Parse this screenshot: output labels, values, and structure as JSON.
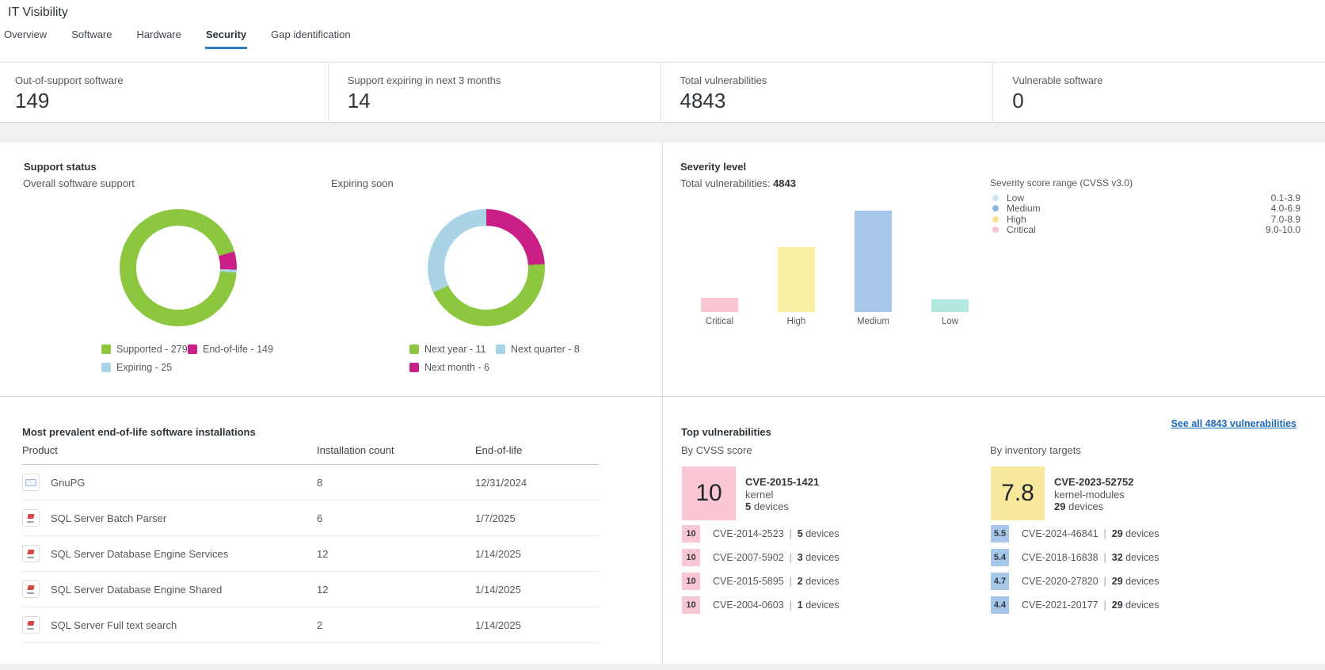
{
  "page": {
    "title": "IT Visibility"
  },
  "tabs": [
    {
      "label": "Overview",
      "active": false
    },
    {
      "label": "Software",
      "active": false
    },
    {
      "label": "Hardware",
      "active": false
    },
    {
      "label": "Security",
      "active": true
    },
    {
      "label": "Gap identification",
      "active": false
    }
  ],
  "kpis": [
    {
      "label": "Out-of-support software",
      "value": "149"
    },
    {
      "label": "Support expiring in next 3 months",
      "value": "14"
    },
    {
      "label": "Total vulnerabilities",
      "value": "4843"
    },
    {
      "label": "Vulnerable software",
      "value": "0"
    }
  ],
  "colors": {
    "green": "#8dc63f",
    "magenta": "#ca1f87",
    "lightblue": "#a8d4e6",
    "bar_critical": "#f9c6d3",
    "bar_high": "#fbf0a3",
    "bar_medium": "#a6c7e9",
    "bar_low": "#b2e9e0",
    "featured_yellow": "#f7e89d",
    "link_blue": "#1d6ab8",
    "tab_accent": "#2e7cc0"
  },
  "support_status": {
    "heading": "Support status",
    "donuts": [
      {
        "title": "Overall software support",
        "start_angle": 95,
        "segments": [
          {
            "label": "Supported",
            "value": 2795,
            "color": "#8dc63f"
          },
          {
            "label": "End-of-life",
            "value": 149,
            "color": "#ca1f87"
          },
          {
            "label": "Expiring",
            "value": 25,
            "color": "#a8d4e6"
          }
        ],
        "legend": [
          {
            "label": "Supported",
            "value": 2795,
            "color": "#8dc63f"
          },
          {
            "label": "End-of-life",
            "value": 149,
            "color": "#ca1f87"
          },
          {
            "label": "Expiring",
            "value": 25,
            "color": "#a8d4e6"
          }
        ]
      },
      {
        "title": "Expiring soon",
        "start_angle": 0,
        "segments": [
          {
            "label": "Next month",
            "value": 6,
            "color": "#ca1f87"
          },
          {
            "label": "Next year",
            "value": 11,
            "color": "#8dc63f"
          },
          {
            "label": "Next quarter",
            "value": 8,
            "color": "#a8d4e6"
          }
        ],
        "legend": [
          {
            "label": "Next year",
            "value": 11,
            "color": "#8dc63f"
          },
          {
            "label": "Next quarter",
            "value": 8,
            "color": "#a8d4e6"
          },
          {
            "label": "Next month",
            "value": 6,
            "color": "#ca1f87"
          }
        ]
      }
    ]
  },
  "severity": {
    "heading": "Severity level",
    "total_label": "Total vulnerabilities:",
    "total_value": "4843",
    "bars": {
      "categories": [
        "Critical",
        "High",
        "Medium",
        "Low"
      ],
      "values": [
        357,
        1628,
        2541,
        317
      ],
      "colors": [
        "#f9c6d3",
        "#fbf0a3",
        "#a6c7e9",
        "#b2e9e0"
      ]
    },
    "legend": {
      "title": "Severity score range (CVSS v3.0)",
      "items": [
        {
          "label": "Low",
          "range": "0.1-3.9",
          "color": "#c9e7f2"
        },
        {
          "label": "Medium",
          "range": "4.0-6.9",
          "color": "#8fb6de"
        },
        {
          "label": "High",
          "range": "7.0-8.9",
          "color": "#f6e58e"
        },
        {
          "label": "Critical",
          "range": "9.0-10.0",
          "color": "#f8c3d0"
        }
      ]
    }
  },
  "eol_table": {
    "heading": "Most prevalent end-of-life software installations",
    "columns": [
      "Product",
      "Installation count",
      "End-of-life"
    ],
    "rows": [
      {
        "product": "GnuPG",
        "icon": "gnupg",
        "count": "8",
        "date": "12/31/2024"
      },
      {
        "product": "SQL Server Batch Parser",
        "icon": "sqlserver",
        "count": "6",
        "date": "1/7/2025"
      },
      {
        "product": "SQL Server Database Engine Services",
        "icon": "sqlserver",
        "count": "12",
        "date": "1/14/2025"
      },
      {
        "product": "SQL Server Database Engine Shared",
        "icon": "sqlserver",
        "count": "12",
        "date": "1/14/2025"
      },
      {
        "product": "SQL Server Full text search",
        "icon": "sqlserver",
        "count": "2",
        "date": "1/14/2025"
      }
    ]
  },
  "top_vulnerabilities": {
    "heading": "Top vulnerabilities",
    "see_all_link": "See all 4843 vulnerabilities",
    "columns": [
      {
        "title": "By CVSS score",
        "featured": {
          "score": "10",
          "score_bg": "#f9c6d3",
          "cve": "CVE-2015-1421",
          "component": "kernel",
          "device_count": "5",
          "device_label": "devices"
        },
        "rows": [
          {
            "score": "10",
            "score_bg": "#f9c6d3",
            "cve": "CVE-2014-2523",
            "device_count": "5",
            "device_label": "devices"
          },
          {
            "score": "10",
            "score_bg": "#f9c6d3",
            "cve": "CVE-2007-5902",
            "device_count": "3",
            "device_label": "devices"
          },
          {
            "score": "10",
            "score_bg": "#f9c6d3",
            "cve": "CVE-2015-5895",
            "device_count": "2",
            "device_label": "devices"
          },
          {
            "score": "10",
            "score_bg": "#f9c6d3",
            "cve": "CVE-2004-0603",
            "device_count": "1",
            "device_label": "devices"
          }
        ]
      },
      {
        "title": "By inventory targets",
        "featured": {
          "score": "7.8",
          "score_bg": "#f7e89d",
          "cve": "CVE-2023-52752",
          "component": "kernel-modules",
          "device_count": "29",
          "device_label": "devices"
        },
        "rows": [
          {
            "score": "5.5",
            "score_bg": "#a6c7e9",
            "cve": "CVE-2024-46841",
            "device_count": "29",
            "device_label": "devices"
          },
          {
            "score": "5.4",
            "score_bg": "#a6c7e9",
            "cve": "CVE-2018-16838",
            "device_count": "32",
            "device_label": "devices"
          },
          {
            "score": "4.7",
            "score_bg": "#a6c7e9",
            "cve": "CVE-2020-27820",
            "device_count": "29",
            "device_label": "devices"
          },
          {
            "score": "4.4",
            "score_bg": "#a6c7e9",
            "cve": "CVE-2021-20177",
            "device_count": "29",
            "device_label": "devices"
          }
        ]
      }
    ]
  },
  "chart_data": [
    {
      "type": "pie",
      "title": "Overall software support",
      "labels": [
        "Supported",
        "Expiring",
        "End-of-life"
      ],
      "values": [
        2795,
        25,
        149
      ],
      "colors": [
        "#8dc63f",
        "#a8d4e6",
        "#ca1f87"
      ],
      "legend_position": "bottom"
    },
    {
      "type": "pie",
      "title": "Expiring soon",
      "labels": [
        "Next year",
        "Next quarter",
        "Next month"
      ],
      "values": [
        11,
        8,
        6
      ],
      "colors": [
        "#8dc63f",
        "#a8d4e6",
        "#ca1f87"
      ],
      "legend_position": "bottom"
    },
    {
      "type": "bar",
      "title": "Severity level",
      "categories": [
        "Critical",
        "High",
        "Medium",
        "Low"
      ],
      "values": [
        357,
        1628,
        2541,
        317
      ],
      "values_note": "estimated from bar heights; stated total is 4843",
      "total": 4843,
      "colors": [
        "#f9c6d3",
        "#fbf0a3",
        "#a6c7e9",
        "#b2e9e0"
      ],
      "grid": false,
      "legend_position": "right"
    }
  ]
}
